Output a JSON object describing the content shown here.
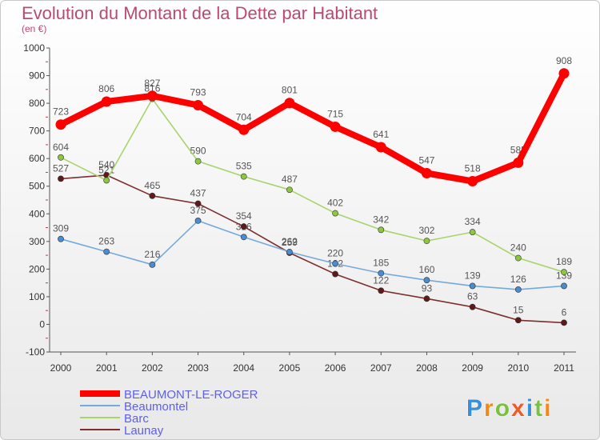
{
  "chart_data": {
    "type": "line",
    "title": "Evolution du Montant de la Dette par Habitant",
    "subtitle": "(en €)",
    "x": [
      "2000",
      "2001",
      "2002",
      "2003",
      "2004",
      "2005",
      "2006",
      "2007",
      "2008",
      "2009",
      "2010",
      "2011"
    ],
    "ylim": [
      -100,
      1000
    ],
    "yticks": [
      -100,
      0,
      100,
      200,
      300,
      400,
      500,
      600,
      700,
      800,
      900,
      1000
    ],
    "grid": false,
    "legend_position": "bottom-left",
    "series": [
      {
        "name": "BEAUMONT-LE-ROGER",
        "color": "#ff0000",
        "marker_color": "#ff0000",
        "values": [
          723,
          806,
          827,
          793,
          704,
          801,
          715,
          641,
          547,
          518,
          585,
          908
        ]
      },
      {
        "name": "Beaumontel",
        "color": "#74aadb",
        "marker_color": "#4b8bd0",
        "values": [
          309,
          263,
          216,
          375,
          316,
          262,
          220,
          185,
          160,
          139,
          126,
          139
        ]
      },
      {
        "name": "Barc",
        "color": "#a8d46c",
        "marker_color": "#8ec63f",
        "values": [
          604,
          521,
          816,
          590,
          535,
          487,
          402,
          342,
          302,
          334,
          240,
          189
        ]
      },
      {
        "name": "Launay",
        "color": "#7d2e2e",
        "marker_color": "#5e1a1a",
        "values": [
          527,
          540,
          465,
          437,
          354,
          259,
          182,
          122,
          93,
          63,
          15,
          6
        ]
      }
    ]
  },
  "logo": {
    "letters": [
      "P",
      "r",
      "o",
      "x",
      "i",
      "t",
      "i"
    ],
    "colors": [
      "#3a8fd8",
      "#f08a1c",
      "#7bc043",
      "#f05a28",
      "#3a8fd8",
      "#7bc043",
      "#f08a1c"
    ]
  }
}
